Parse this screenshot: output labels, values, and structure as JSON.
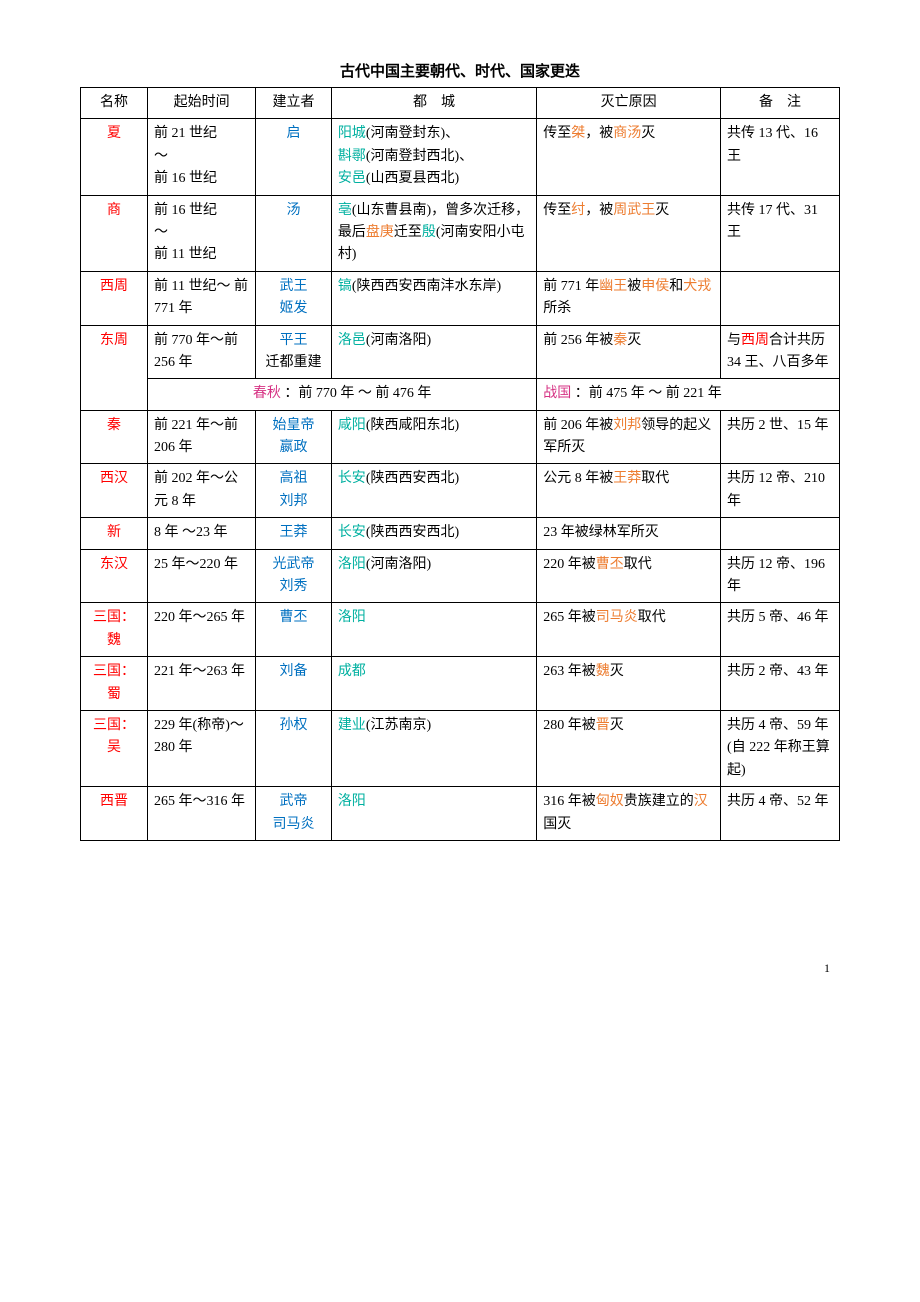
{
  "title": "古代中国主要朝代、时代、国家更迭",
  "headers": {
    "name": "名称",
    "time": "起始时间",
    "founder": "建立者",
    "capital": "都　城",
    "fall": "灭亡原因",
    "note": "备　注"
  },
  "footer_page": "1",
  "colors": {
    "red": "#ff0000",
    "blue": "#0070c0",
    "orange": "#ed7d31",
    "teal": "#00b0a0",
    "magenta": "#d63384",
    "black": "#000000"
  },
  "rows": {
    "xia": {
      "name": "夏",
      "time1": "前 21 世纪",
      "time2": "～",
      "time3": "前 16 世纪",
      "founder": "启",
      "cap_p1": "阳城",
      "cap_s1": "(河南登封东)、",
      "cap_p2": "斟鄩",
      "cap_s2": "(河南登封西北)、",
      "cap_p3": "安邑",
      "cap_s3": "(山西夏县西北)",
      "fall_a": "传至",
      "fall_b": "桀",
      "fall_c": "，被",
      "fall_d": "商汤",
      "fall_e": "灭",
      "note": "共传 13 代、16 王"
    },
    "shang": {
      "name": "商",
      "time1": "前 16 世纪",
      "time2": "～",
      "time3": "前 11 世纪",
      "founder": "汤",
      "cap_p1": "亳",
      "cap_s1": "(山东曹县南)，曾多次迁移，最后",
      "cap_p2": "盘庚",
      "cap_s2": "迁至",
      "cap_p3": "殷",
      "cap_s3": "(河南安阳小屯村)",
      "fall_a": "传至",
      "fall_b": "纣",
      "fall_c": "，被",
      "fall_d": "周武王",
      "fall_e": "灭",
      "note": "共传 17 代、31 王"
    },
    "xizhou": {
      "name": "西周",
      "time": "前 11 世纪～ 前 771 年",
      "founder1": "武王",
      "founder2": "姬发",
      "cap_p1": "镐",
      "cap_s1": "(陕西西安西南沣水东岸)",
      "fall_a": "前 771 年",
      "fall_b": "幽王",
      "fall_c": "被",
      "fall_d": "申侯",
      "fall_e": "和",
      "fall_f": "犬戎",
      "fall_g": "所杀",
      "note": ""
    },
    "dongzhou": {
      "name": "东周",
      "time": "前 770 年～前 256 年",
      "founder1": "平王",
      "founder2": "迁都重建",
      "cap_p1": "洛邑",
      "cap_s1": "(河南洛阳)",
      "fall_a": "前 256 年被",
      "fall_b": "秦",
      "fall_c": "灭",
      "note_a": "与",
      "note_b": "西周",
      "note_c": "合计共历 34 王、八百多年"
    },
    "chunqiu": {
      "label_a": "春秋",
      "label_b": " ：前 770 年 ～ 前 476 年",
      "label_c": "战国",
      "label_d": " ：前 475 年 ～ 前 221 年"
    },
    "qin": {
      "name": "秦",
      "time": "前 221 年～前 206 年",
      "founder1": "始皇帝",
      "founder2": "嬴政",
      "cap_p1": "咸阳",
      "cap_s1": "(陕西咸阳东北)",
      "fall_a": "前 206 年被",
      "fall_b": "刘邦",
      "fall_c": "领导的起义军所灭",
      "note": "共历 2 世、15 年"
    },
    "xihan": {
      "name": "西汉",
      "time": "前 202 年～公元 8 年",
      "founder1": "高祖",
      "founder2": "刘邦",
      "cap_p1": "长安",
      "cap_s1": "(陕西西安西北)",
      "fall_a": "公元 8 年被",
      "fall_b": "王莽",
      "fall_c": "取代",
      "note": "共历 12 帝、210 年"
    },
    "xin": {
      "name": "新",
      "time": "8 年 ～23 年",
      "founder": "王莽",
      "cap_p1": "长安",
      "cap_s1": "(陕西西安西北)",
      "fall": "23 年被绿林军所灭",
      "note": ""
    },
    "donghan": {
      "name": "东汉",
      "time": "25 年～220 年",
      "founder1": "光武帝",
      "founder2": "刘秀",
      "cap_p1": "洛阳",
      "cap_s1": "(河南洛阳)",
      "fall_a": "220 年被",
      "fall_b": "曹丕",
      "fall_c": "取代",
      "note": "共历 12 帝、196 年"
    },
    "wei": {
      "name1": "三国：",
      "name2": "魏",
      "time": "220 年～265 年",
      "founder": "曹丕",
      "cap": "洛阳",
      "fall_a": "265 年被",
      "fall_b": "司马炎",
      "fall_c": "取代",
      "note": "共历 5 帝、46 年"
    },
    "shu": {
      "name1": "三国：",
      "name2": "蜀",
      "time": "221 年～263 年",
      "founder": "刘备",
      "cap": "成都",
      "fall_a": "263 年被",
      "fall_b": "魏",
      "fall_c": "灭",
      "note": "共历 2 帝、43 年"
    },
    "wu": {
      "name1": "三国：",
      "name2": "吴",
      "time": "229 年(称帝)～280 年",
      "founder": "孙权",
      "cap_p1": "建业",
      "cap_s1": "(江苏南京)",
      "fall_a": "280 年被",
      "fall_b": "晋",
      "fall_c": "灭",
      "note": "共历 4 帝、59 年(自 222 年称王算起)"
    },
    "xijin": {
      "name": "西晋",
      "time": "265 年～316 年",
      "founder1": "武帝",
      "founder2": "司马炎",
      "cap": "洛阳",
      "fall_a": "316 年被",
      "fall_b": "匈奴",
      "fall_c": "贵族建立的",
      "fall_d": "汉",
      "fall_e": "国灭",
      "note": "共历 4 帝、52 年"
    }
  }
}
